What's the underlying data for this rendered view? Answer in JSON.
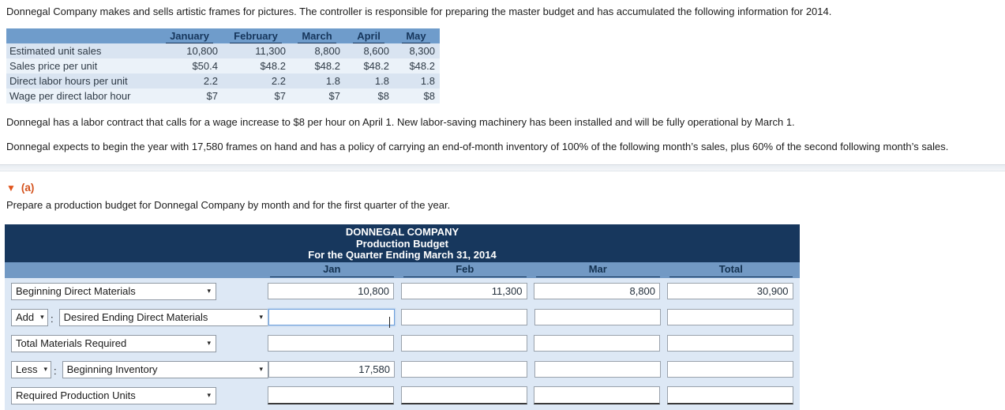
{
  "intro": "Donnegal Company makes and sells artistic frames for pictures. The controller is responsible for preparing the master budget and has accumulated the following information for 2014.",
  "info_table": {
    "columns": [
      "January",
      "February",
      "March",
      "April",
      "May"
    ],
    "rows": [
      {
        "label": "Estimated unit sales",
        "values": [
          "10,800",
          "11,300",
          "8,800",
          "8,600",
          "8,300"
        ]
      },
      {
        "label": "Sales price per unit",
        "values": [
          "$50.4",
          "$48.2",
          "$48.2",
          "$48.2",
          "$48.2"
        ]
      },
      {
        "label": "Direct labor hours per unit",
        "values": [
          "2.2",
          "2.2",
          "1.8",
          "1.8",
          "1.8"
        ]
      },
      {
        "label": "Wage per direct labor hour",
        "values": [
          "$7",
          "$7",
          "$7",
          "$8",
          "$8"
        ]
      }
    ]
  },
  "para_labor": "Donnegal has a labor contract that calls for a wage increase to $8 per hour on April 1. New labor-saving machinery has been installed and will be fully operational by March 1.",
  "para_inventory": "Donnegal expects to begin the year with 17,580 frames on hand and has a policy of carrying an end-of-month inventory of 100% of the following month’s sales, plus 60% of the second following month’s sales.",
  "section": {
    "label": "(a)",
    "instruction": "Prepare a production budget for Donnegal Company by month and for the first quarter of the year."
  },
  "budget_table": {
    "title_lines": [
      "DONNEGAL COMPANY",
      "Production Budget",
      "For the Quarter Ending March 31, 2014"
    ],
    "columns": [
      "Jan",
      "Feb",
      "Mar",
      "Total"
    ],
    "rows": [
      {
        "select_label": "Beginning Direct Materials",
        "inputs": [
          "10,800",
          "11,300",
          "8,800",
          "30,900"
        ]
      },
      {
        "prefix_label": "Add",
        "separator": ":",
        "select_label": "Desired Ending Direct Materials",
        "inputs": [
          "",
          "",
          "",
          ""
        ]
      },
      {
        "select_label": "Total Materials Required",
        "inputs": [
          "",
          "",
          "",
          ""
        ]
      },
      {
        "prefix_label": "Less",
        "separator": ":",
        "select_label": "Beginning Inventory",
        "inputs": [
          "17,580",
          "",
          "",
          ""
        ]
      },
      {
        "select_label": "Required Production Units",
        "inputs": [
          "",
          "",
          "",
          ""
        ]
      }
    ]
  },
  "icons": {
    "dropdown_arrow": "▾",
    "section_toggle": "▼"
  },
  "colors": {
    "header_navy": "#17375d",
    "header_steel_blue": "#7299c4",
    "row_light_blue": "#d9e4f1",
    "row_lighter_blue": "#ebf2f9",
    "body_light_blue": "#dde8f5",
    "accent_orange": "#d4511c",
    "focus_blue": "#6fa0dc"
  }
}
